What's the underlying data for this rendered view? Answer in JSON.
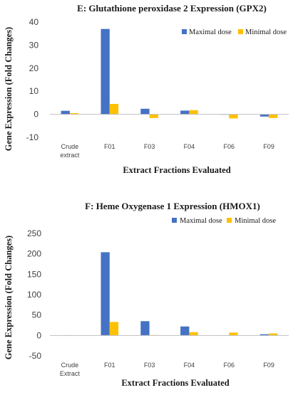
{
  "chart_data": [
    {
      "type": "bar",
      "title": "E: Glutathione peroxidase 2 Expression (GPX2)",
      "xlabel": "Extract Fractions Evaluated",
      "ylabel": "Gene Expression (Fold Changes)",
      "categories": [
        [
          "Crude",
          "extract"
        ],
        [
          "F01"
        ],
        [
          "F03"
        ],
        [
          "F04"
        ],
        [
          "F06"
        ],
        [
          "F09"
        ]
      ],
      "ylim": [
        -10,
        40
      ],
      "yticks": [
        -10,
        0,
        10,
        20,
        30,
        40
      ],
      "legend_position": "top-right",
      "grid": false,
      "series": [
        {
          "name": "Maximal dose",
          "color": "#4472C4",
          "values": [
            1.5,
            37,
            2.4,
            1.6,
            0,
            -1
          ]
        },
        {
          "name": "Minimal dose",
          "color": "#FFC000",
          "values": [
            0.5,
            4.5,
            -1.6,
            1.8,
            -1.8,
            -1.6
          ]
        }
      ]
    },
    {
      "type": "bar",
      "title": "F: Heme Oxygenase 1 Expression (HMOX1)",
      "xlabel": "Extract Fractions Evaluated",
      "ylabel": "Gene Expression (Fold Changes)",
      "categories": [
        [
          "Crude",
          "Extract"
        ],
        [
          "F01"
        ],
        [
          "F03"
        ],
        [
          "F04"
        ],
        [
          "F06"
        ],
        [
          "F09"
        ]
      ],
      "ylim": [
        -50,
        250
      ],
      "yticks": [
        -50,
        0,
        50,
        100,
        150,
        200,
        250
      ],
      "legend_position": "top-right",
      "grid": false,
      "series": [
        {
          "name": "Maximal dose",
          "color": "#4472C4",
          "values": [
            0.5,
            204,
            35,
            22,
            0.5,
            3
          ]
        },
        {
          "name": "Minimal dose",
          "color": "#FFC000",
          "values": [
            0.5,
            33,
            1,
            8,
            7,
            5
          ]
        }
      ]
    }
  ]
}
